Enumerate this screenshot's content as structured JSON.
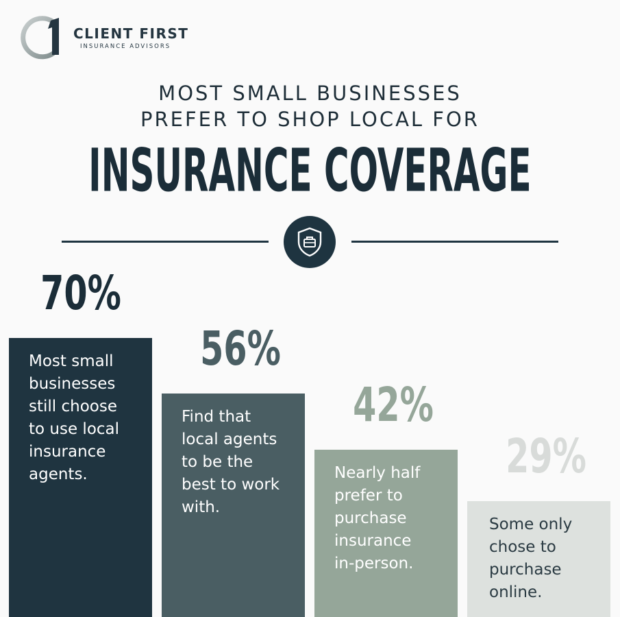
{
  "brand": {
    "name": "CLIENT FIRST",
    "tagline": "INSURANCE ADVISORS"
  },
  "heading": {
    "line1": "MOST SMALL BUSINESSES",
    "line2": "PREFER TO SHOP LOCAL FOR",
    "title": "INSURANCE COVERAGE"
  },
  "icons": {
    "logo": "client-first-logo-icon",
    "badge": "shield-briefcase-icon"
  },
  "colors": {
    "dark": "#1b2d38",
    "bar1": "#1f3440",
    "bar2": "#4a5e63",
    "bar3": "#95a699",
    "bar4": "#dde1de",
    "pct3": "#95a699",
    "pct4": "#d8dbd9"
  },
  "chart_data": {
    "type": "bar",
    "categories": [
      "Most small businesses still choose to use local insurance agents.",
      "Find that local agents to be the best to work with.",
      "Nearly half prefer to purchase insurance in-person.",
      "Some only chose to purchase online."
    ],
    "values": [
      70,
      56,
      42,
      29
    ],
    "value_labels": [
      "70%",
      "56%",
      "42%",
      "29%"
    ],
    "descriptions": [
      "Most small\nbusinesses\nstill choose\nto use local\ninsurance\nagents.",
      "Find that\nlocal agents\nto be the\nbest to work\nwith.",
      "Nearly half\nprefer to\npurchase\ninsurance\nin-person.",
      "Some only\nchose to\npurchase\nonline."
    ],
    "ylim": [
      0,
      100
    ],
    "grid": false,
    "legend": "none"
  }
}
